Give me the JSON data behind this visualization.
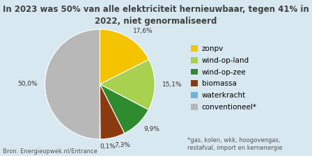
{
  "title": "In 2023 was 50% van alle elektriciteit hernieuwbaar, tegen 41% in\n2022, niet genormaliseerd",
  "slices": [
    17.6,
    15.1,
    9.9,
    7.3,
    0.1,
    50.0
  ],
  "labels": [
    "17,6%",
    "15,1%",
    "9,9%",
    "7,3%",
    "0,1%",
    "50,0%"
  ],
  "legend_labels": [
    "zonpv",
    "wind-op-land",
    "wind-op-zee",
    "biomassa",
    "waterkracht",
    "conventioneel*"
  ],
  "colors": [
    "#F5C400",
    "#A8D14F",
    "#2E8B2E",
    "#8B3A0F",
    "#6CB4D8",
    "#B8B8B8"
  ],
  "startangle": 90,
  "source": "Bron: Energieopwek.nl/Entrance",
  "footnote": "*gas, kolen, wkk, hoogovengas,\nrestafval, import en kernenergie",
  "background_color": "#D8E8F0",
  "title_fontsize": 8.5,
  "legend_fontsize": 7.5,
  "label_fontsize": 6.5,
  "source_fontsize": 6.0,
  "footnote_fontsize": 6.0
}
